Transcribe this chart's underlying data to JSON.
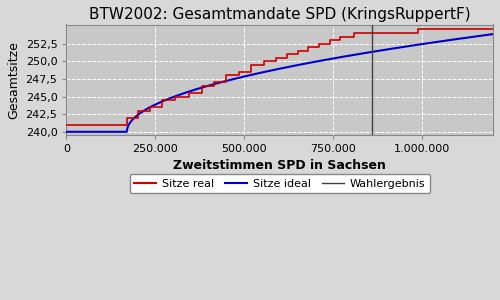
{
  "title": "BTW2002: Gesamtmandate SPD (KringsRuppertF)",
  "xlabel": "Zweitstimmen SPD in Sachsen",
  "ylabel": "Gesamtsitze",
  "xlim": [
    0,
    1200000
  ],
  "ylim": [
    239.6,
    255.2
  ],
  "wahlergebnis_x": 860000,
  "axes_bg_color": "#c8c8c8",
  "fig_bg_color": "#d8d8d8",
  "grid_color": "white",
  "title_fontsize": 11,
  "axis_label_fontsize": 9,
  "tick_fontsize": 8,
  "yticks": [
    240.0,
    242.5,
    245.0,
    247.5,
    250.0,
    252.5
  ],
  "xticks": [
    0,
    250000,
    500000,
    750000,
    1000000
  ],
  "xtick_labels": [
    "0",
    "250.000",
    "500.000",
    "750.000",
    "1.000.000"
  ],
  "ideal_color": "#0000cc",
  "real_color": "#cc0000",
  "wahlergebnis_color": "#404040",
  "legend_labels": [
    "Sitze real",
    "Sitze ideal",
    "Wahlergebnis"
  ],
  "step_x": [
    0,
    170000,
    170000,
    200000,
    200000,
    235000,
    235000,
    270000,
    270000,
    305000,
    305000,
    345000,
    345000,
    380000,
    380000,
    415000,
    415000,
    450000,
    450000,
    485000,
    485000,
    520000,
    520000,
    555000,
    555000,
    590000,
    590000,
    620000,
    620000,
    650000,
    650000,
    680000,
    680000,
    710000,
    710000,
    740000,
    740000,
    770000,
    770000,
    810000,
    810000,
    870000,
    870000,
    930000,
    930000,
    990000,
    990000,
    1060000,
    1060000,
    1130000,
    1200000
  ],
  "step_y": [
    241.0,
    241.0,
    242.0,
    242.0,
    243.0,
    243.0,
    243.5,
    243.5,
    244.5,
    244.5,
    245.0,
    245.0,
    245.5,
    245.5,
    246.5,
    246.5,
    247.0,
    247.0,
    248.0,
    248.0,
    248.5,
    248.5,
    249.5,
    249.5,
    250.0,
    250.0,
    250.5,
    250.5,
    251.0,
    251.0,
    251.5,
    251.5,
    252.0,
    252.0,
    252.5,
    252.5,
    253.0,
    253.0,
    253.5,
    253.5,
    254.0,
    254.0,
    254.0,
    254.0,
    254.0,
    254.0,
    254.5,
    254.5,
    254.5,
    254.5,
    254.5
  ]
}
